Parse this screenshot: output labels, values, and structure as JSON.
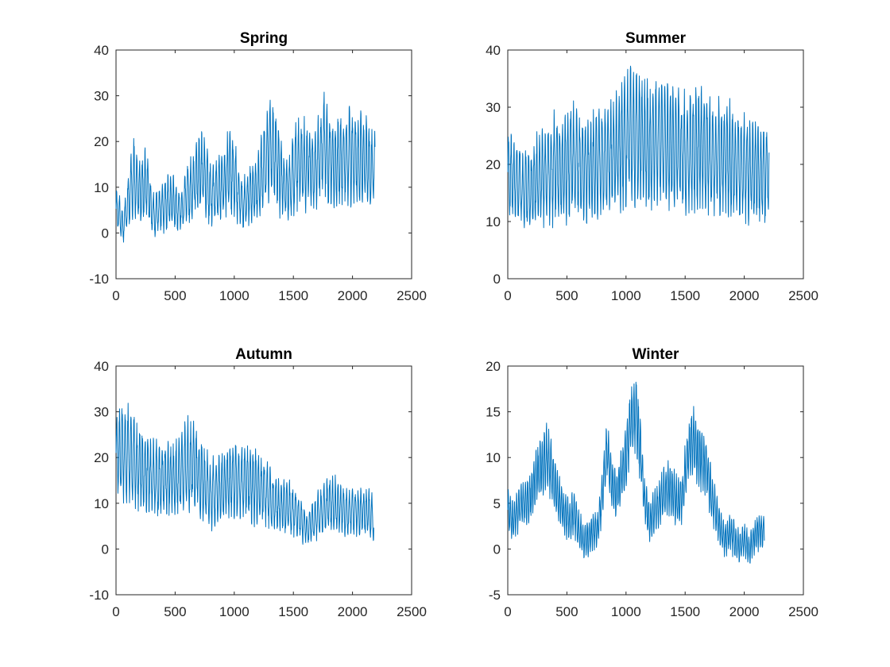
{
  "colors": {
    "series": "#0072BD",
    "axes": "#262626",
    "title": "#000000"
  },
  "chart_data": [
    {
      "type": "line",
      "title": "Spring",
      "xlabel": "",
      "ylabel": "",
      "xlim": [
        0,
        2500
      ],
      "ylim": [
        -10,
        40
      ],
      "xticks": [
        0,
        500,
        1000,
        1500,
        2000,
        2500
      ],
      "yticks": [
        -10,
        0,
        10,
        20,
        30,
        40
      ],
      "grid": false,
      "series": [
        {
          "x_end": 2190,
          "mean_min": 1,
          "mean_max": 19,
          "amplitude_min": 3,
          "amplitude_max": 11,
          "period": 24,
          "values": [
            [
              0,
              5
            ],
            [
              30,
              4
            ],
            [
              60,
              1
            ],
            [
              90,
              5
            ],
            [
              120,
              10
            ],
            [
              150,
              12
            ],
            [
              180,
              10
            ],
            [
              210,
              8
            ],
            [
              240,
              11
            ],
            [
              270,
              10
            ],
            [
              300,
              5
            ],
            [
              330,
              4
            ],
            [
              360,
              5
            ],
            [
              400,
              6
            ],
            [
              440,
              7
            ],
            [
              480,
              7
            ],
            [
              520,
              5
            ],
            [
              560,
              5
            ],
            [
              600,
              9
            ],
            [
              640,
              10
            ],
            [
              680,
              12
            ],
            [
              720,
              13
            ],
            [
              760,
              12
            ],
            [
              800,
              8
            ],
            [
              840,
              9
            ],
            [
              880,
              10
            ],
            [
              920,
              11
            ],
            [
              960,
              14
            ],
            [
              1000,
              12
            ],
            [
              1040,
              8
            ],
            [
              1080,
              6
            ],
            [
              1120,
              8
            ],
            [
              1160,
              9
            ],
            [
              1200,
              10
            ],
            [
              1240,
              13
            ],
            [
              1280,
              17
            ],
            [
              1320,
              20
            ],
            [
              1360,
              16
            ],
            [
              1400,
              12
            ],
            [
              1440,
              9
            ],
            [
              1480,
              11
            ],
            [
              1520,
              15
            ],
            [
              1560,
              16
            ],
            [
              1600,
              15
            ],
            [
              1640,
              14
            ],
            [
              1680,
              14
            ],
            [
              1720,
              16
            ],
            [
              1760,
              19
            ],
            [
              1800,
              17
            ],
            [
              1840,
              15
            ],
            [
              1880,
              16
            ],
            [
              1920,
              16
            ],
            [
              1960,
              17
            ],
            [
              2000,
              17
            ],
            [
              2040,
              16
            ],
            [
              2080,
              16
            ],
            [
              2120,
              15
            ],
            [
              2160,
              14
            ],
            [
              2190,
              13
            ]
          ]
        }
      ]
    },
    {
      "type": "line",
      "title": "Summer",
      "xlabel": "",
      "ylabel": "",
      "xlim": [
        0,
        2500
      ],
      "ylim": [
        0,
        40
      ],
      "xticks": [
        0,
        500,
        1000,
        1500,
        2000,
        2500
      ],
      "yticks": [
        0,
        10,
        20,
        30,
        40
      ],
      "grid": false,
      "series": [
        {
          "x_end": 2210,
          "mean_min": 14,
          "mean_max": 26,
          "amplitude_min": 6,
          "amplitude_max": 12,
          "period": 24,
          "values": [
            [
              0,
              18
            ],
            [
              60,
              17
            ],
            [
              120,
              16
            ],
            [
              180,
              15
            ],
            [
              240,
              17
            ],
            [
              300,
              18
            ],
            [
              360,
              19
            ],
            [
              420,
              19
            ],
            [
              480,
              20
            ],
            [
              540,
              21
            ],
            [
              600,
              20
            ],
            [
              660,
              19
            ],
            [
              720,
              20
            ],
            [
              780,
              20
            ],
            [
              840,
              21
            ],
            [
              900,
              22
            ],
            [
              960,
              23
            ],
            [
              1020,
              25
            ],
            [
              1080,
              25
            ],
            [
              1140,
              24
            ],
            [
              1200,
              23
            ],
            [
              1260,
              24
            ],
            [
              1320,
              24
            ],
            [
              1380,
              23
            ],
            [
              1440,
              22
            ],
            [
              1500,
              22
            ],
            [
              1560,
              22
            ],
            [
              1620,
              23
            ],
            [
              1680,
              22
            ],
            [
              1740,
              21
            ],
            [
              1800,
              21
            ],
            [
              1860,
              21
            ],
            [
              1920,
              20
            ],
            [
              1980,
              19
            ],
            [
              2040,
              19
            ],
            [
              2100,
              19
            ],
            [
              2160,
              18
            ],
            [
              2210,
              18
            ]
          ]
        }
      ]
    },
    {
      "type": "line",
      "title": "Autumn",
      "xlabel": "",
      "ylabel": "",
      "xlim": [
        0,
        2500
      ],
      "ylim": [
        -10,
        40
      ],
      "xticks": [
        0,
        500,
        1000,
        1500,
        2000,
        2500
      ],
      "yticks": [
        -10,
        0,
        10,
        20,
        30,
        40
      ],
      "grid": false,
      "series": [
        {
          "x_end": 2180,
          "mean_min": 3,
          "mean_max": 22,
          "amplitude_min": 3,
          "amplitude_max": 11,
          "period": 24,
          "values": [
            [
              0,
              20
            ],
            [
              60,
              21
            ],
            [
              120,
              20
            ],
            [
              180,
              18
            ],
            [
              240,
              17
            ],
            [
              300,
              16
            ],
            [
              360,
              15
            ],
            [
              420,
              15
            ],
            [
              480,
              15
            ],
            [
              540,
              16
            ],
            [
              600,
              18
            ],
            [
              650,
              19
            ],
            [
              700,
              16
            ],
            [
              760,
              14
            ],
            [
              800,
              12
            ],
            [
              860,
              13
            ],
            [
              920,
              14
            ],
            [
              980,
              15
            ],
            [
              1040,
              15
            ],
            [
              1100,
              15
            ],
            [
              1160,
              14
            ],
            [
              1220,
              13
            ],
            [
              1280,
              12
            ],
            [
              1340,
              10
            ],
            [
              1400,
              9
            ],
            [
              1460,
              9
            ],
            [
              1520,
              8
            ],
            [
              1580,
              6
            ],
            [
              1620,
              4
            ],
            [
              1660,
              6
            ],
            [
              1700,
              7
            ],
            [
              1760,
              9
            ],
            [
              1820,
              10
            ],
            [
              1880,
              9
            ],
            [
              1940,
              8
            ],
            [
              2000,
              8
            ],
            [
              2060,
              8
            ],
            [
              2120,
              8
            ],
            [
              2180,
              7
            ]
          ]
        }
      ]
    },
    {
      "type": "line",
      "title": "Winter",
      "xlabel": "",
      "ylabel": "",
      "xlim": [
        0,
        2500
      ],
      "ylim": [
        -5,
        20
      ],
      "xticks": [
        0,
        500,
        1000,
        1500,
        2000,
        2500
      ],
      "yticks": [
        -5,
        0,
        5,
        10,
        15,
        20
      ],
      "grid": false,
      "series": [
        {
          "x_end": 2170,
          "mean_min": -1,
          "mean_max": 14,
          "amplitude_min": 1.5,
          "amplitude_max": 4,
          "period": 18,
          "values": [
            [
              0,
              4
            ],
            [
              40,
              3
            ],
            [
              80,
              4
            ],
            [
              120,
              5
            ],
            [
              160,
              5
            ],
            [
              200,
              6
            ],
            [
              240,
              8
            ],
            [
              280,
              9
            ],
            [
              320,
              10
            ],
            [
              360,
              9
            ],
            [
              400,
              7
            ],
            [
              440,
              5
            ],
            [
              480,
              4
            ],
            [
              520,
              3
            ],
            [
              560,
              4
            ],
            [
              600,
              2
            ],
            [
              640,
              1
            ],
            [
              680,
              1
            ],
            [
              720,
              2
            ],
            [
              760,
              2
            ],
            [
              800,
              6
            ],
            [
              840,
              11
            ],
            [
              880,
              7
            ],
            [
              920,
              6
            ],
            [
              960,
              8
            ],
            [
              1000,
              10
            ],
            [
              1040,
              14
            ],
            [
              1080,
              15
            ],
            [
              1120,
              11
            ],
            [
              1160,
              5
            ],
            [
              1200,
              3
            ],
            [
              1240,
              4
            ],
            [
              1280,
              5
            ],
            [
              1320,
              6
            ],
            [
              1360,
              7
            ],
            [
              1400,
              6
            ],
            [
              1440,
              5
            ],
            [
              1480,
              6
            ],
            [
              1520,
              10
            ],
            [
              1560,
              12
            ],
            [
              1600,
              11
            ],
            [
              1640,
              10
            ],
            [
              1680,
              9
            ],
            [
              1720,
              6
            ],
            [
              1760,
              4
            ],
            [
              1800,
              2
            ],
            [
              1840,
              1
            ],
            [
              1880,
              2
            ],
            [
              1920,
              1
            ],
            [
              1960,
              0
            ],
            [
              2000,
              1
            ],
            [
              2040,
              0
            ],
            [
              2080,
              1
            ],
            [
              2120,
              2
            ],
            [
              2170,
              2
            ]
          ]
        }
      ]
    }
  ]
}
